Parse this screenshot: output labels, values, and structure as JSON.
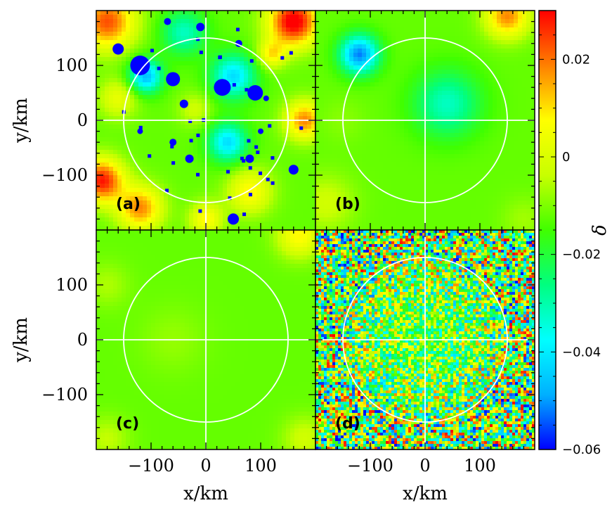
{
  "chart_data": {
    "type": "heatmap",
    "panels": [
      {
        "id": "a",
        "label": "(a)"
      },
      {
        "id": "b",
        "label": "(b)"
      },
      {
        "id": "c",
        "label": "(c)"
      },
      {
        "id": "d",
        "label": "(d)"
      }
    ],
    "xlabel": "x/km",
    "ylabel": "y/km",
    "xlim": [
      -200,
      200
    ],
    "ylim": [
      -200,
      200
    ],
    "x_ticks": [
      -100,
      0,
      100
    ],
    "y_ticks": [
      -100,
      0,
      100
    ],
    "x_tick_labels": [
      "−100",
      "0",
      "100"
    ],
    "y_tick_labels": [
      "−100",
      "0",
      "100"
    ],
    "circle_radius_km": 150,
    "crosshair_at": [
      0,
      0
    ],
    "colorbar": {
      "label": "δ",
      "range": [
        -0.06,
        0.03
      ],
      "ticks": [
        0.02,
        0,
        -0.02,
        -0.04,
        -0.06
      ],
      "tick_labels": [
        "0.02",
        "0",
        "−0.02",
        "−0.04",
        "−0.06"
      ],
      "colormap": [
        "#0000ff",
        "#00b0ff",
        "#00ffff",
        "#00ff80",
        "#40ff00",
        "#c8ff00",
        "#ffff00",
        "#ff8000",
        "#ff0000"
      ]
    },
    "grid": false,
    "legend": "none"
  }
}
